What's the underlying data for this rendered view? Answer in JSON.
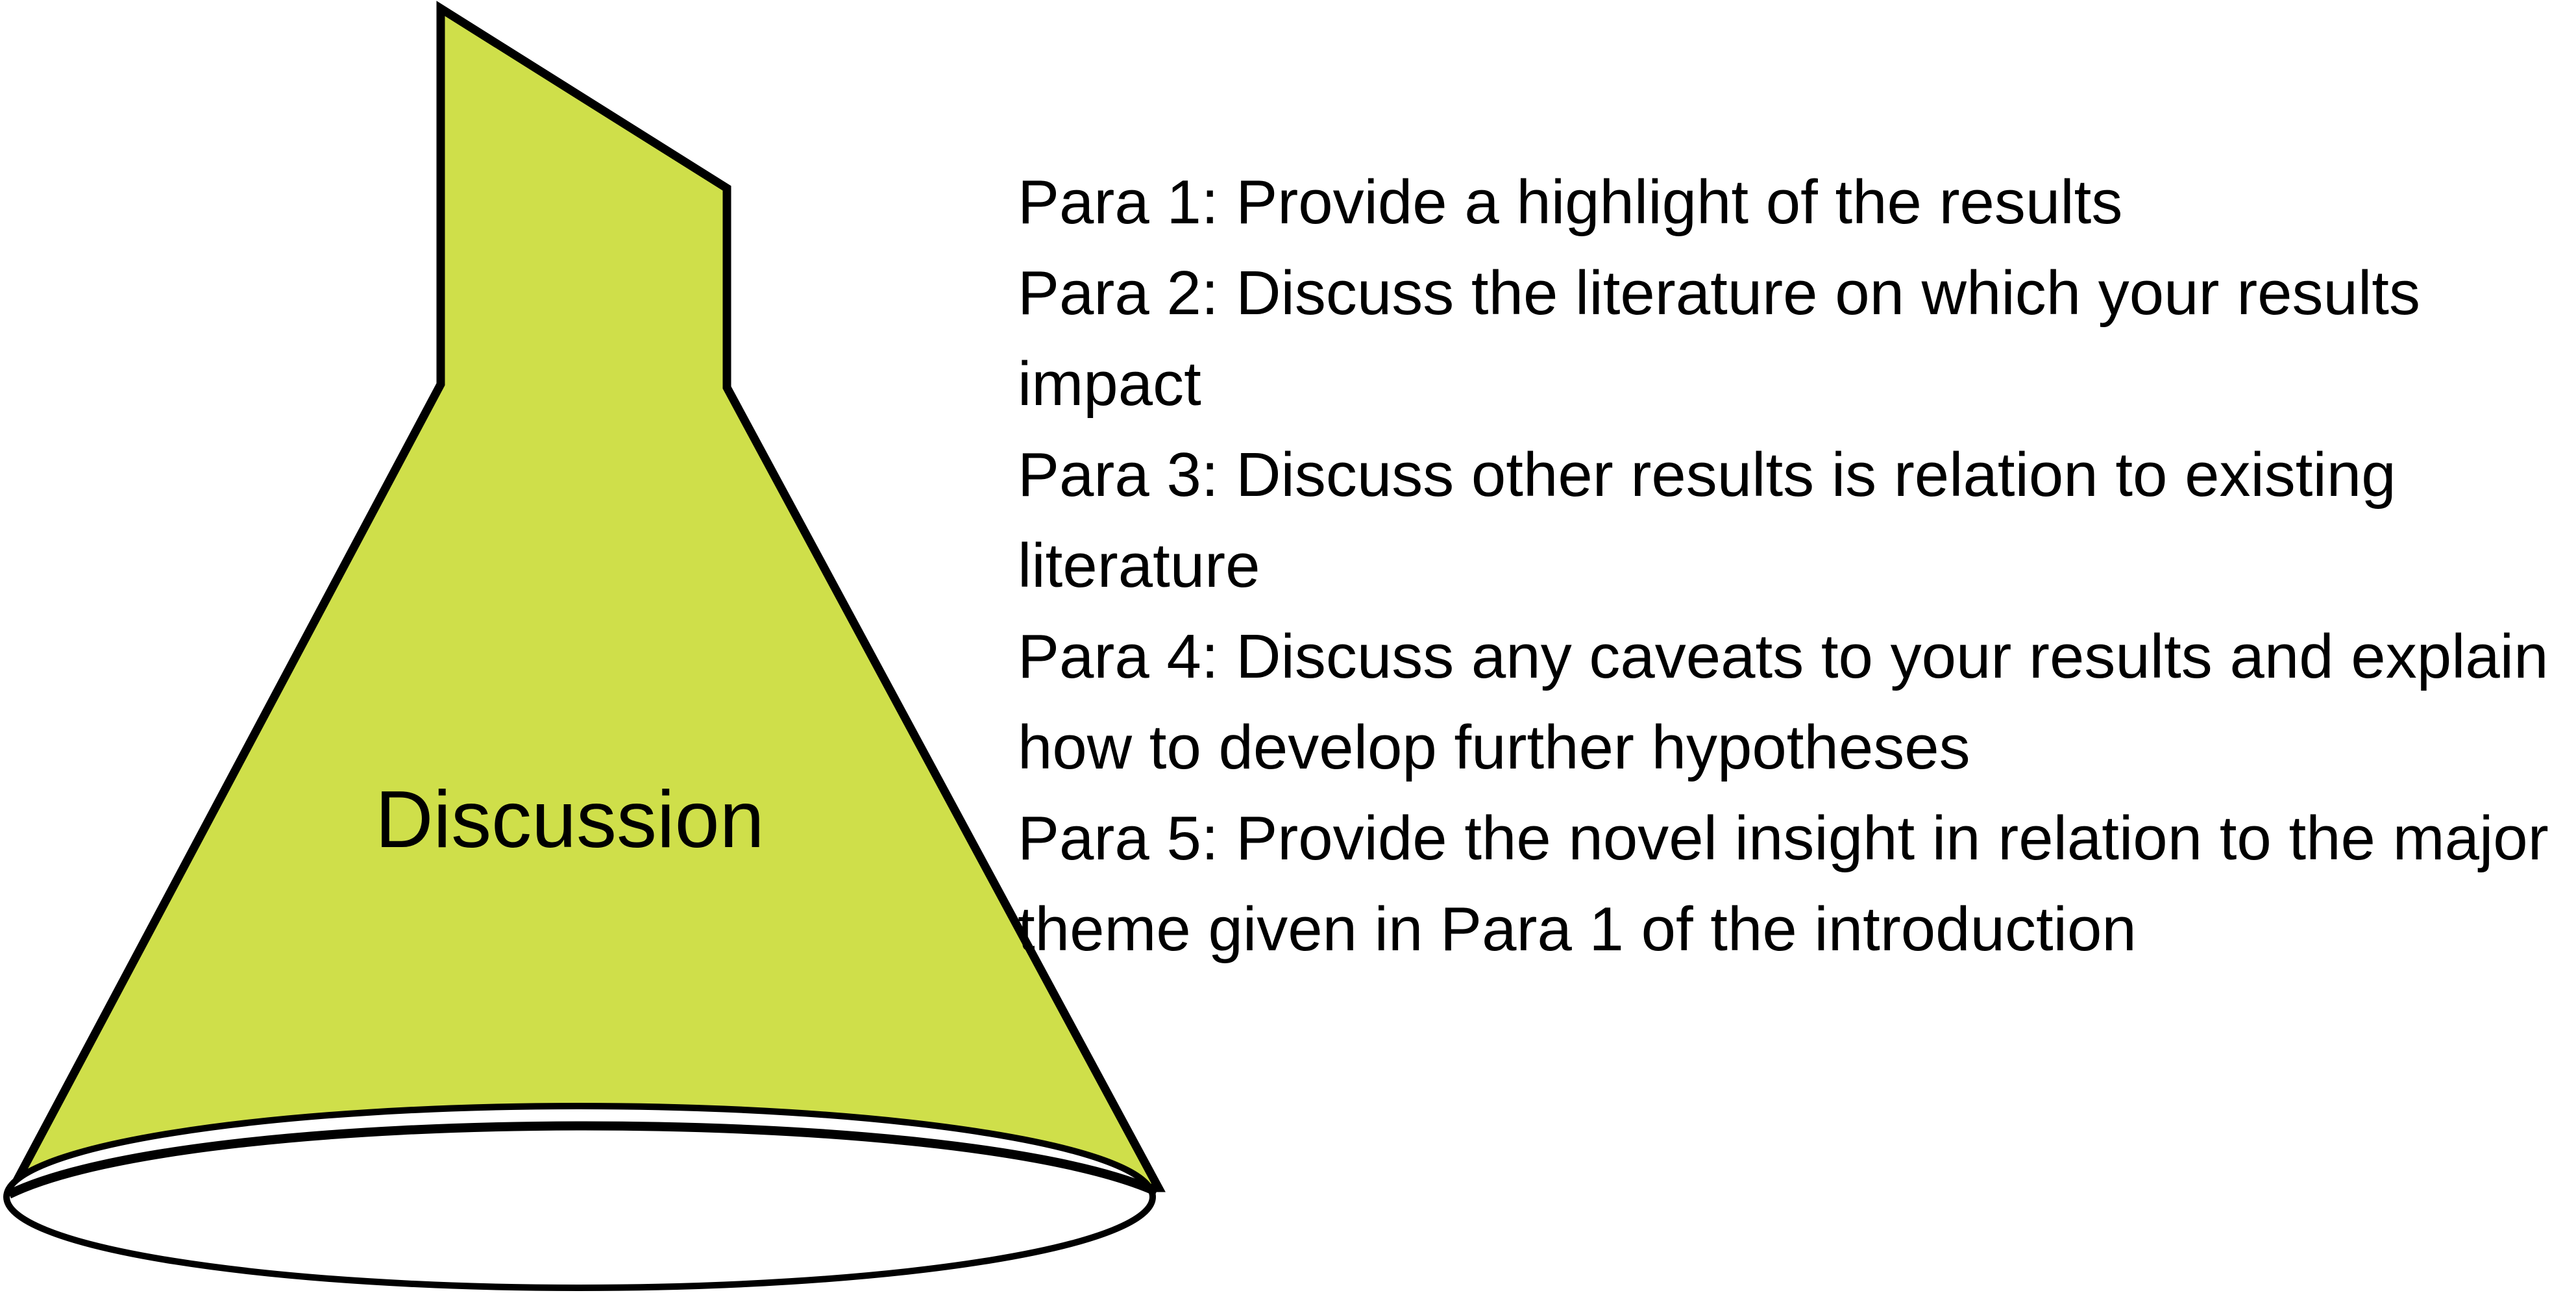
{
  "diagram": {
    "shape_label": "Discussion",
    "shape_fill": "#cfdf4a",
    "outline_color": "#000000",
    "items": [
      {
        "label": "Para 1:",
        "text": "Provide a highlight of the results"
      },
      {
        "label": "Para 2:",
        "text": "Discuss the literature on which your results impact"
      },
      {
        "label": "Para 3:",
        "text": "Discuss other results is relation to existing literature"
      },
      {
        "label": "Para 4:",
        "text": "Discuss any caveats to your results and explain how to develop further hypotheses"
      },
      {
        "label": "Para 5:",
        "text": "Provide the novel insight in relation to the major theme given in Para 1 of the introduction"
      }
    ]
  }
}
